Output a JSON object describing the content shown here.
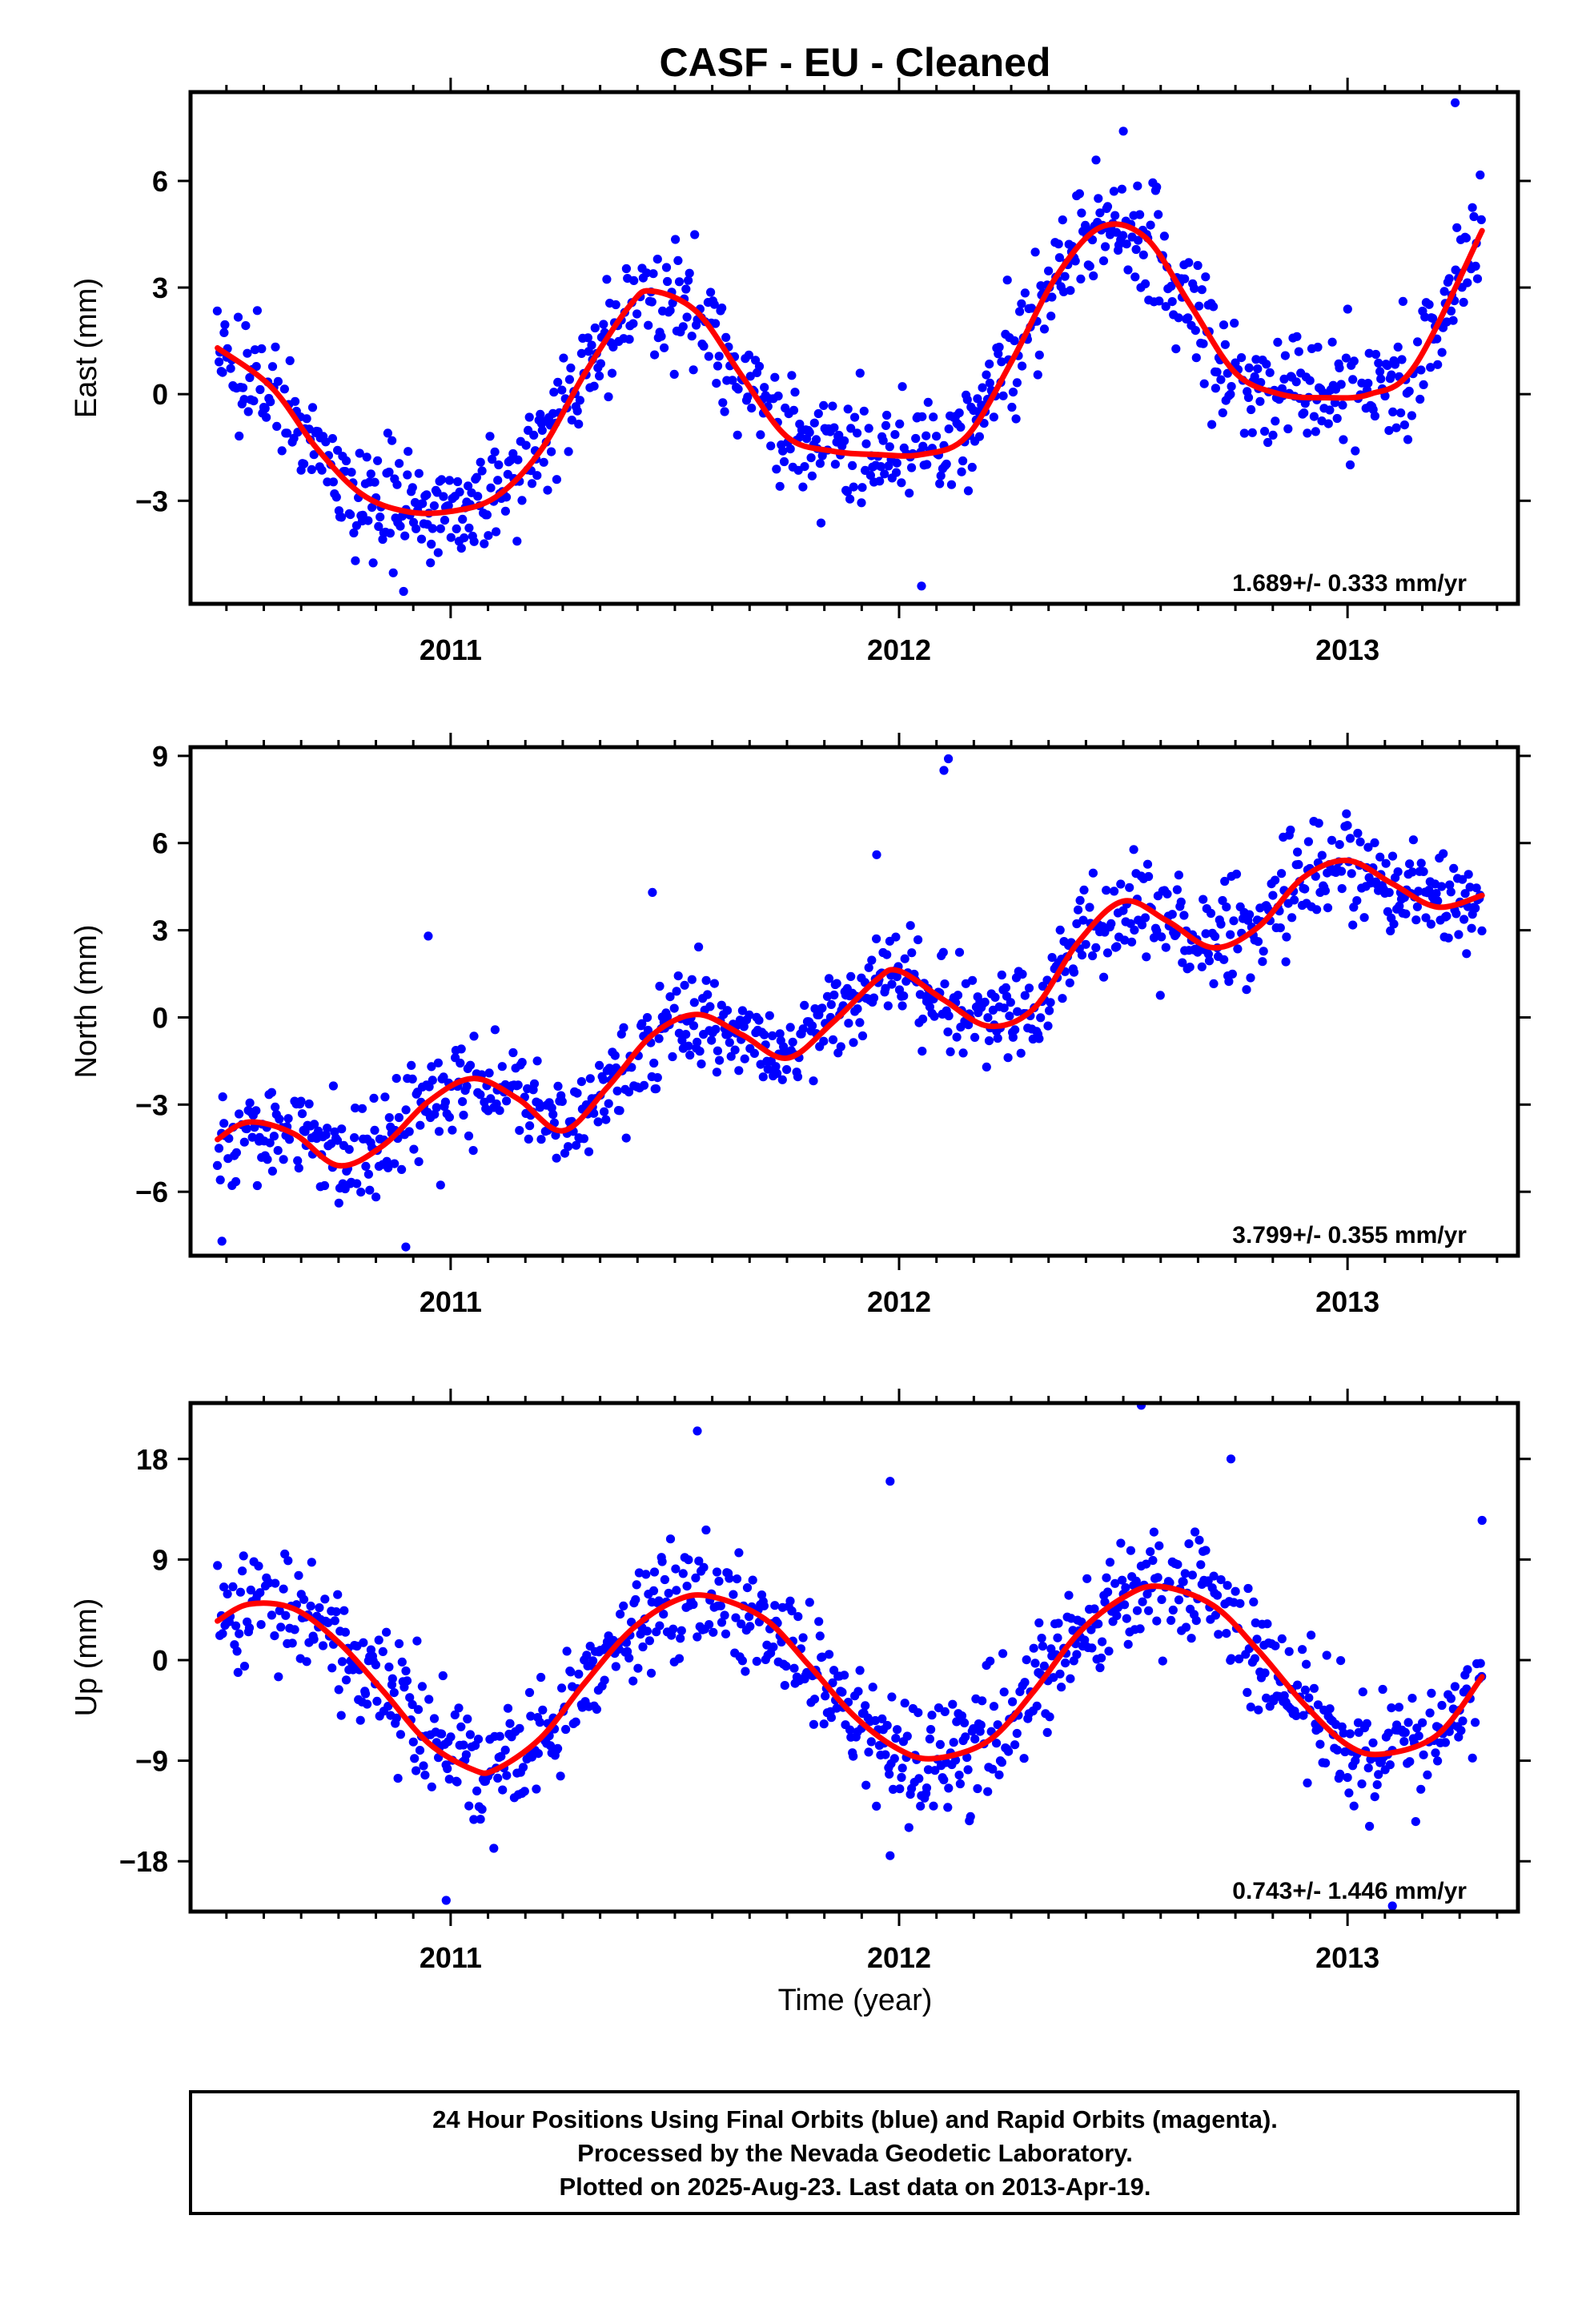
{
  "title": "CASF  - EU - Cleaned",
  "xlabel": "Time (year)",
  "colors": {
    "data": "#0000ff",
    "fit": "#ff0000",
    "frame": "#000000"
  },
  "footer": {
    "lines": [
      "24 Hour Positions Using Final Orbits (blue) and Rapid Orbits (magenta).",
      "Processed by the Nevada Geodetic Laboratory.",
      "Plotted on 2025-Aug-23. Last data on 2013-Apr-19."
    ]
  },
  "chart_data": [
    {
      "type": "scatter",
      "ylabel": "East (mm)",
      "rate_text": "1.689+/- 0.333 mm/yr",
      "xlim": [
        2010.42,
        2013.38
      ],
      "ylim": [
        -5.9,
        8.5
      ],
      "x_ticks": [
        2011,
        2012,
        2013
      ],
      "x_tick_labels": [
        "2011",
        "2012",
        "2013"
      ],
      "y_ticks": [
        -3,
        0,
        3,
        6
      ],
      "y_tick_labels": [
        "−3",
        "0",
        "3",
        "6"
      ],
      "fit_curve": {
        "x": [
          2010.48,
          2010.6,
          2010.7,
          2010.8,
          2010.9,
          2011.0,
          2011.1,
          2011.2,
          2011.3,
          2011.4,
          2011.45,
          2011.55,
          2011.65,
          2011.75,
          2011.85,
          2011.95,
          2012.05,
          2012.15,
          2012.25,
          2012.35,
          2012.45,
          2012.55,
          2012.65,
          2012.75,
          2012.85,
          2012.95,
          2013.05,
          2013.15,
          2013.3
        ],
        "y": [
          1.3,
          0.2,
          -1.5,
          -2.8,
          -3.3,
          -3.3,
          -2.9,
          -1.6,
          0.6,
          2.5,
          2.9,
          2.3,
          0.5,
          -1.2,
          -1.6,
          -1.7,
          -1.7,
          -1.2,
          0.9,
          3.3,
          4.7,
          4.4,
          2.5,
          0.6,
          0.0,
          -0.1,
          0.0,
          0.8,
          4.6
        ]
      },
      "scatter_seed": 11,
      "scatter_spread": 0.95,
      "scatter_outliers": [
        {
          "x": 2013.24,
          "y": 8.2
        },
        {
          "x": 2012.05,
          "y": -5.4
        },
        {
          "x": 2012.5,
          "y": 7.4
        }
      ]
    },
    {
      "type": "scatter",
      "ylabel": "North (mm)",
      "rate_text": "3.799+/- 0.355 mm/yr",
      "xlim": [
        2010.42,
        2013.38
      ],
      "ylim": [
        -8.2,
        9.3
      ],
      "x_ticks": [
        2011,
        2012,
        2013
      ],
      "x_tick_labels": [
        "2011",
        "2012",
        "2013"
      ],
      "y_ticks": [
        -6,
        -3,
        0,
        3,
        6,
        9
      ],
      "y_tick_labels": [
        "−6",
        "−3",
        "0",
        "3",
        "6",
        "9"
      ],
      "fit_curve": {
        "x": [
          2010.48,
          2010.55,
          2010.65,
          2010.75,
          2010.85,
          2010.95,
          2011.05,
          2011.15,
          2011.25,
          2011.35,
          2011.45,
          2011.55,
          2011.65,
          2011.75,
          2011.85,
          2011.95,
          2012.0,
          2012.1,
          2012.2,
          2012.3,
          2012.4,
          2012.5,
          2012.6,
          2012.7,
          2012.8,
          2012.9,
          2013.0,
          2013.1,
          2013.2,
          2013.3
        ],
        "y": [
          -4.2,
          -3.6,
          -4.0,
          -5.1,
          -4.4,
          -2.9,
          -2.1,
          -2.8,
          -3.9,
          -2.4,
          -0.6,
          0.1,
          -0.6,
          -1.4,
          -0.2,
          1.3,
          1.6,
          0.6,
          -0.3,
          0.3,
          2.6,
          4.0,
          3.3,
          2.4,
          3.1,
          4.8,
          5.4,
          4.6,
          3.8,
          4.2
        ]
      },
      "scatter_seed": 23,
      "scatter_spread": 1.0,
      "scatter_outliers": [
        {
          "x": 2011.95,
          "y": 5.6
        },
        {
          "x": 2012.1,
          "y": 8.5
        },
        {
          "x": 2012.11,
          "y": 8.9
        },
        {
          "x": 2010.95,
          "y": 2.8
        },
        {
          "x": 2010.9,
          "y": -7.9
        },
        {
          "x": 2011.45,
          "y": 4.3
        },
        {
          "x": 2010.49,
          "y": -7.7
        }
      ]
    },
    {
      "type": "scatter",
      "ylabel": "Up (mm)",
      "rate_text": "0.743+/- 1.446 mm/yr",
      "xlim": [
        2010.42,
        2013.38
      ],
      "ylim": [
        -22.5,
        23.0
      ],
      "x_ticks": [
        2011,
        2012,
        2013
      ],
      "x_tick_labels": [
        "2011",
        "2012",
        "2013"
      ],
      "y_ticks": [
        -18,
        -9,
        0,
        9,
        18
      ],
      "y_tick_labels": [
        "−18",
        "−9",
        "0",
        "9",
        "18"
      ],
      "fit_curve": {
        "x": [
          2010.48,
          2010.55,
          2010.65,
          2010.75,
          2010.85,
          2010.95,
          2011.05,
          2011.1,
          2011.2,
          2011.3,
          2011.4,
          2011.5,
          2011.58,
          2011.7,
          2011.8,
          2011.9,
          2012.0,
          2012.08,
          2012.2,
          2012.3,
          2012.4,
          2012.5,
          2012.58,
          2012.7,
          2012.8,
          2012.9,
          2013.0,
          2013.08,
          2013.2,
          2013.3
        ],
        "y": [
          3.5,
          5.0,
          4.6,
          1.6,
          -2.8,
          -7.4,
          -9.8,
          -9.8,
          -7.0,
          -2.0,
          2.6,
          5.3,
          5.7,
          3.7,
          -0.5,
          -5.0,
          -8.0,
          -8.8,
          -7.2,
          -2.8,
          2.4,
          5.6,
          6.6,
          4.9,
          0.9,
          -3.8,
          -7.6,
          -8.4,
          -6.7,
          -1.5
        ]
      },
      "scatter_seed": 37,
      "scatter_spread": 3.1,
      "scatter_outliers": [
        {
          "x": 2011.55,
          "y": 20.5
        },
        {
          "x": 2012.54,
          "y": 22.8
        },
        {
          "x": 2011.98,
          "y": 16.0
        },
        {
          "x": 2012.74,
          "y": 18.0
        },
        {
          "x": 2011.98,
          "y": -17.5
        },
        {
          "x": 2010.99,
          "y": -21.5
        },
        {
          "x": 2013.3,
          "y": 12.5
        },
        {
          "x": 2013.1,
          "y": -22.0
        }
      ]
    }
  ]
}
